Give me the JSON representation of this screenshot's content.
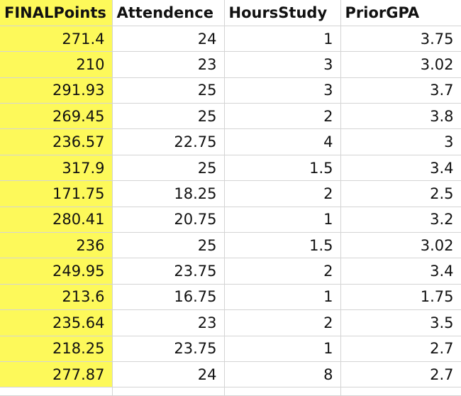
{
  "sheet": {
    "highlight_color": "#fdf95a",
    "headers": [
      "FINALPoints",
      "Attendence",
      "HoursStudy",
      "PriorGPA"
    ],
    "rows": [
      [
        "271.4",
        "24",
        "1",
        "3.75"
      ],
      [
        "210",
        "23",
        "3",
        "3.02"
      ],
      [
        "291.93",
        "25",
        "3",
        "3.7"
      ],
      [
        "269.45",
        "25",
        "2",
        "3.8"
      ],
      [
        "236.57",
        "22.75",
        "4",
        "3"
      ],
      [
        "317.9",
        "25",
        "1.5",
        "3.4"
      ],
      [
        "171.75",
        "18.25",
        "2",
        "2.5"
      ],
      [
        "280.41",
        "20.75",
        "1",
        "3.2"
      ],
      [
        "236",
        "25",
        "1.5",
        "3.02"
      ],
      [
        "249.95",
        "23.75",
        "2",
        "3.4"
      ],
      [
        "213.6",
        "16.75",
        "1",
        "1.75"
      ],
      [
        "235.64",
        "23",
        "2",
        "3.5"
      ],
      [
        "218.25",
        "23.75",
        "1",
        "2.7"
      ],
      [
        "277.87",
        "24",
        "8",
        "2.7"
      ]
    ]
  }
}
